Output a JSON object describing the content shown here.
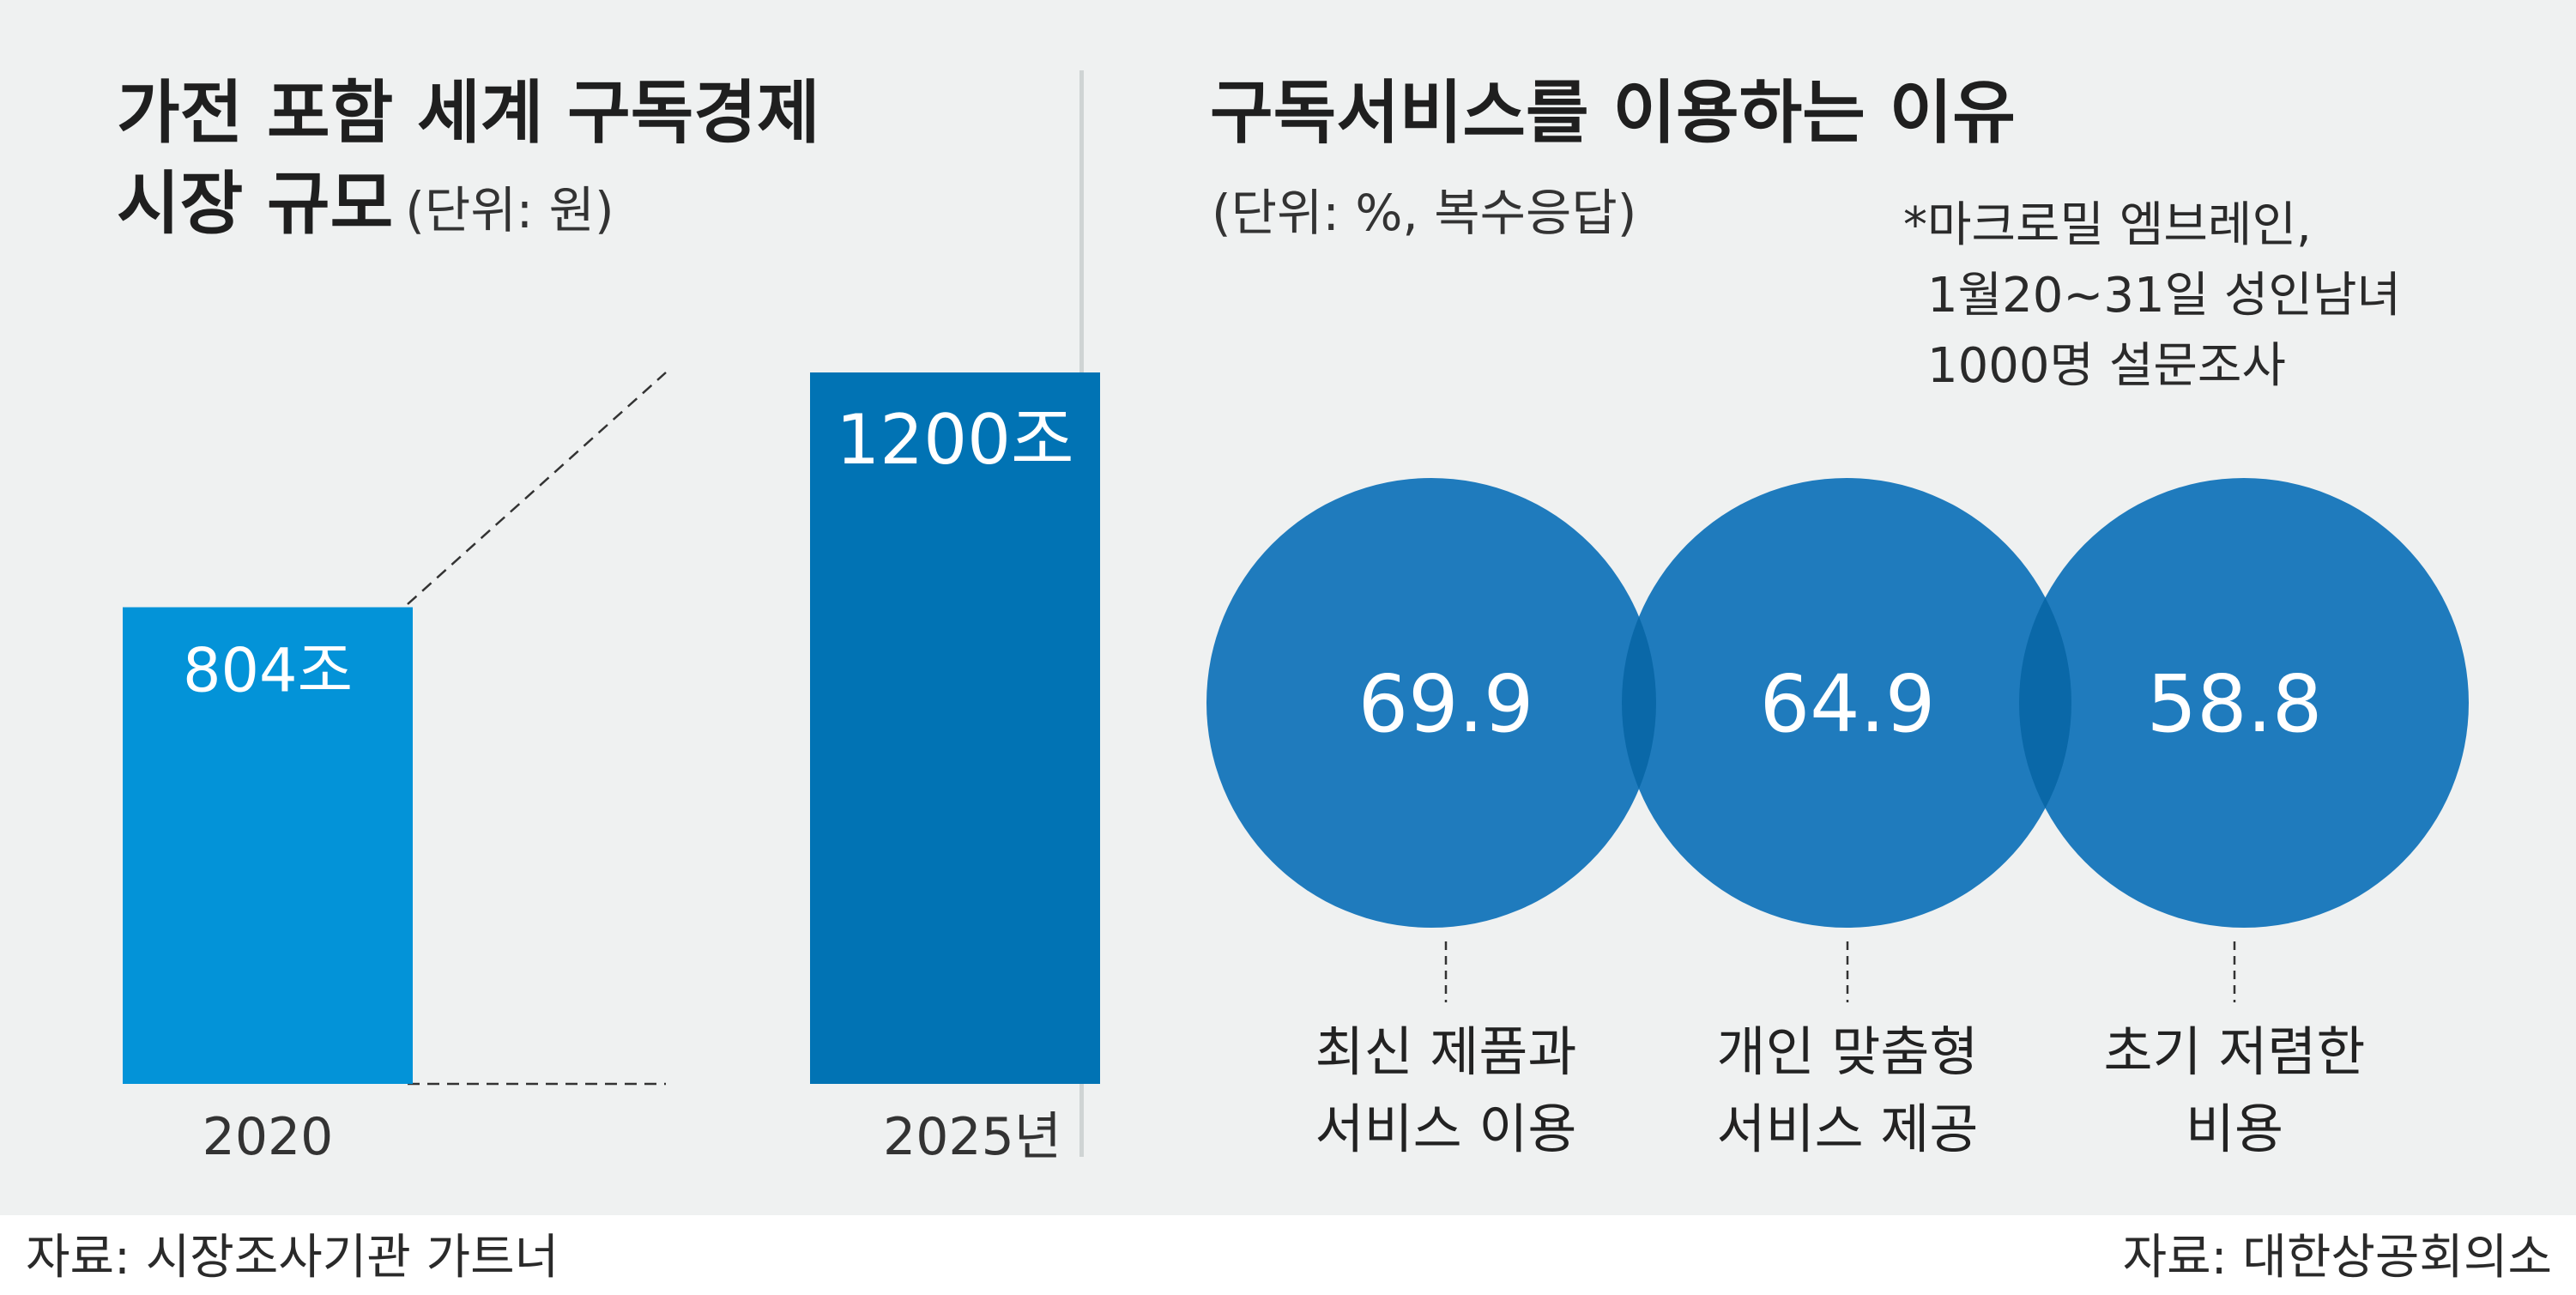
{
  "left": {
    "title_line1": "가전 포함 세계 구독경제",
    "title_line2": "시장 규모",
    "unit": "(단위: 원)",
    "source": "자료: 시장조사기관 가트너"
  },
  "right": {
    "title": "구독서비스를 이용하는 이유",
    "unit": "(단위: %, 복수응답)",
    "note": [
      "*마크로밀 엠브레인,",
      "1월20~31일 성인남녀",
      "1000명 설문조사"
    ],
    "source": "자료: 대한상공회의소"
  },
  "colors": {
    "bar_2020": "#0393d8",
    "bar_2025": "#0173b4",
    "circle": "#1f7bbd",
    "overlap": "#0a68a8",
    "panel_bg": "#eff1f1"
  },
  "chart_data": [
    {
      "type": "bar",
      "title": "가전 포함 세계 구독경제 시장 규모",
      "unit": "(단위: 원)",
      "categories": [
        "2020",
        "2025년"
      ],
      "values": [
        804,
        1200
      ],
      "value_labels": [
        "804조",
        "1200조"
      ],
      "value_unit": "조"
    },
    {
      "type": "bubble",
      "title": "구독서비스를 이용하는 이유",
      "unit": "(단위: %, 복수응답)",
      "categories": [
        "최신 제품과 서비스 이용",
        "개인 맞춤형 서비스 제공",
        "초기 저렴한 비용"
      ],
      "category_lines": [
        [
          "최신 제품과",
          "서비스 이용"
        ],
        [
          "개인 맞춤형",
          "서비스 제공"
        ],
        [
          "초기 저렴한",
          "비용"
        ]
      ],
      "values": [
        69.9,
        64.9,
        58.8
      ],
      "value_labels": [
        "69.9",
        "64.9",
        "58.8"
      ]
    }
  ]
}
